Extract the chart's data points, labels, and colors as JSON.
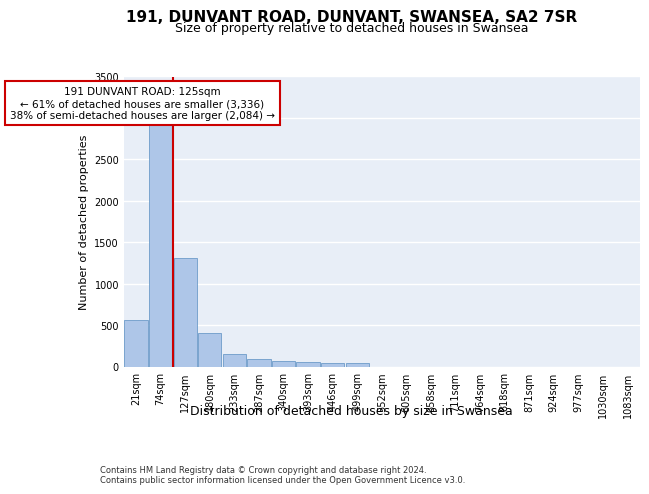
{
  "title1": "191, DUNVANT ROAD, DUNVANT, SWANSEA, SA2 7SR",
  "title2": "Size of property relative to detached houses in Swansea",
  "xlabel": "Distribution of detached houses by size in Swansea",
  "ylabel": "Number of detached properties",
  "footer1": "Contains HM Land Registry data © Crown copyright and database right 2024.",
  "footer2": "Contains public sector information licensed under the Open Government Licence v3.0.",
  "categories": [
    "21sqm",
    "74sqm",
    "127sqm",
    "180sqm",
    "233sqm",
    "287sqm",
    "340sqm",
    "393sqm",
    "446sqm",
    "499sqm",
    "552sqm",
    "605sqm",
    "658sqm",
    "711sqm",
    "764sqm",
    "818sqm",
    "871sqm",
    "924sqm",
    "977sqm",
    "1030sqm",
    "1083sqm"
  ],
  "values": [
    560,
    2920,
    1310,
    410,
    155,
    85,
    65,
    55,
    45,
    40,
    0,
    0,
    0,
    0,
    0,
    0,
    0,
    0,
    0,
    0,
    0
  ],
  "bar_color": "#aec6e8",
  "bar_edge_color": "#5a8fc2",
  "red_line_x": 1.5,
  "annotation_box_text": "191 DUNVANT ROAD: 125sqm\n← 61% of detached houses are smaller (3,336)\n38% of semi-detached houses are larger (2,084) →",
  "annotation_box_color": "#ffffff",
  "annotation_box_edge_color": "#cc0000",
  "ylim": [
    0,
    3500
  ],
  "yticks": [
    0,
    500,
    1000,
    1500,
    2000,
    2500,
    3000,
    3500
  ],
  "background_color": "#e8eef7",
  "grid_color": "#ffffff",
  "title1_fontsize": 11,
  "title2_fontsize": 9,
  "xlabel_fontsize": 9,
  "ylabel_fontsize": 8,
  "tick_fontsize": 7,
  "annotation_fontsize": 7.5,
  "footer_fontsize": 6
}
